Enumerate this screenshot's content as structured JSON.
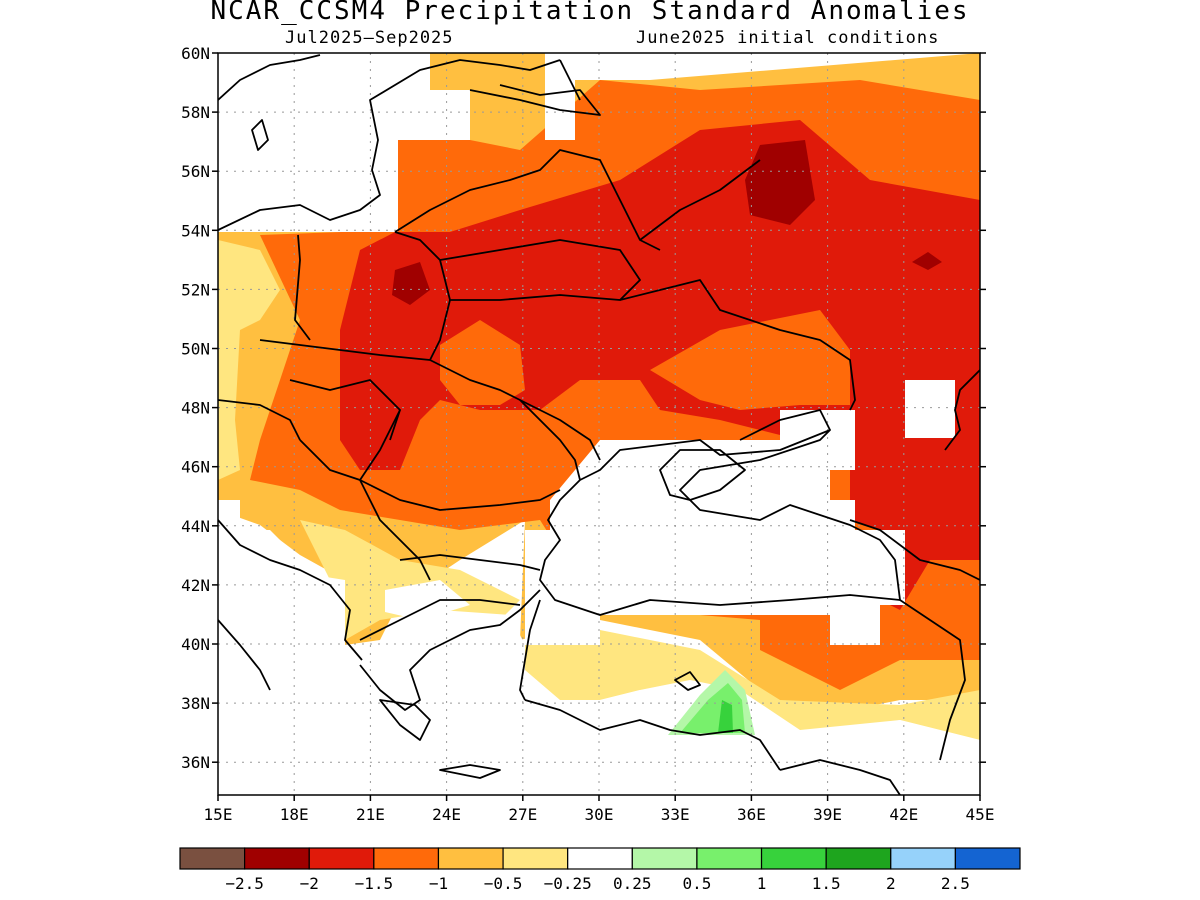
{
  "title": "NCAR_CCSM4 Precipitation Standard Anomalies",
  "subtitle_left": "Jul2025–Sep2025",
  "subtitle_right": "June2025 initial conditions",
  "lat_labels": [
    "60N",
    "58N",
    "56N",
    "54N",
    "52N",
    "50N",
    "48N",
    "46N",
    "44N",
    "42N",
    "40N",
    "38N",
    "36N"
  ],
  "lon_labels": [
    "15E",
    "18E",
    "21E",
    "24E",
    "27E",
    "30E",
    "33E",
    "36E",
    "39E",
    "42E",
    "45E"
  ],
  "colorbar": {
    "colors": [
      "#7a5040",
      "#a00000",
      "#e01a0a",
      "#ff6a0a",
      "#ffbf40",
      "#ffe680",
      "#ffffff",
      "#b4f7a8",
      "#78f06c",
      "#37d23c",
      "#1ea51e",
      "#96d2fa",
      "#1464d2"
    ],
    "labels": [
      "−2.5",
      "−2",
      "−1.5",
      "−1",
      "−0.5",
      "−0.25",
      "0.25",
      "0.5",
      "1",
      "1.5",
      "2",
      "2.5"
    ]
  },
  "legend_colors": {
    "yellow": "#ffe680",
    "light_orange": "#ffbf40",
    "orange": "#ff6a0a",
    "red": "#e01a0a",
    "dark_red": "#a00000",
    "light_green": "#b4f7a8",
    "green": "#78f06c",
    "dark_green": "#37d23c"
  }
}
